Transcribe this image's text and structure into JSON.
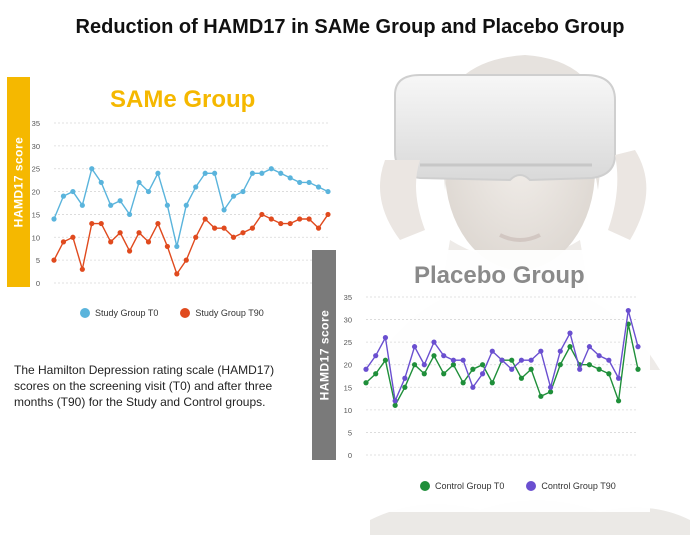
{
  "page_title": "Reduction of HAMD17 in SAMe Group and Placebo Group",
  "caption": "The Hamilton Depression rating scale (HAMD17) scores on the screening visit (T0) and after three months (T90) for  the Study and Control groups.",
  "colors": {
    "same_accent": "#f5b800",
    "placebo_accent": "#7a7a7a",
    "study_t0": "#5ab4dc",
    "study_t90": "#e04a1e",
    "control_t0": "#1f8f3a",
    "control_t90": "#6a4fd0"
  },
  "chart_data": [
    {
      "type": "line",
      "title": "SAMe Group",
      "ylabel": "HAMD17  score",
      "xlabel": "",
      "ylim": [
        0,
        35
      ],
      "yticks": [
        0,
        5,
        10,
        15,
        20,
        25,
        30,
        35
      ],
      "grid": true,
      "legend": "bottom",
      "series": [
        {
          "name": "Study Group T0",
          "color": "#5ab4dc",
          "values": [
            14,
            19,
            20,
            17,
            25,
            22,
            17,
            18,
            15,
            22,
            20,
            24,
            17,
            8,
            17,
            21,
            24,
            24,
            16,
            19,
            20,
            24,
            24,
            25,
            24,
            23,
            22,
            22,
            21,
            20
          ]
        },
        {
          "name": "Study Group T90",
          "color": "#e04a1e",
          "values": [
            5,
            9,
            10,
            3,
            13,
            13,
            9,
            11,
            7,
            11,
            9,
            13,
            8,
            2,
            5,
            10,
            14,
            12,
            12,
            10,
            11,
            12,
            15,
            14,
            13,
            13,
            14,
            14,
            12,
            15
          ]
        }
      ]
    },
    {
      "type": "line",
      "title": "Placebo Group",
      "ylabel": "HAMD17  score",
      "xlabel": "",
      "ylim": [
        0,
        35
      ],
      "yticks": [
        0,
        5,
        10,
        15,
        20,
        25,
        30,
        35
      ],
      "grid": true,
      "legend": "bottom",
      "series": [
        {
          "name": "Control Group T0",
          "color": "#1f8f3a",
          "values": [
            16,
            18,
            21,
            11,
            15,
            20,
            18,
            22,
            18,
            20,
            16,
            19,
            20,
            16,
            21,
            21,
            17,
            19,
            13,
            14,
            20,
            24,
            20,
            20,
            19,
            18,
            12,
            29,
            19
          ]
        },
        {
          "name": "Control Group T90",
          "color": "#6a4fd0",
          "values": [
            19,
            22,
            26,
            12,
            17,
            24,
            20,
            25,
            22,
            21,
            21,
            15,
            18,
            23,
            21,
            19,
            21,
            21,
            23,
            15,
            23,
            27,
            19,
            24,
            22,
            21,
            17,
            32,
            24
          ]
        }
      ]
    }
  ]
}
